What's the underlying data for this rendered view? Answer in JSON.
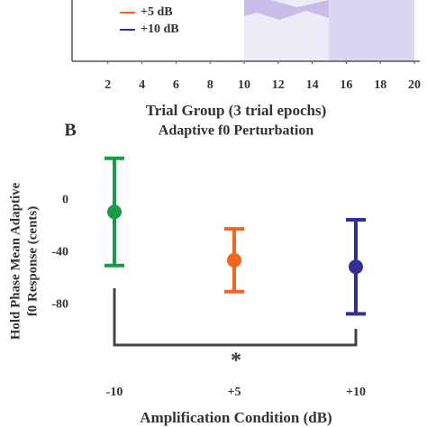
{
  "chart_data": [
    {
      "type": "line",
      "xlabel": "Trial Group (3 trial epochs)",
      "xlim": [
        0,
        20.3
      ],
      "xticks": [
        2,
        4,
        6,
        8,
        10,
        12,
        14,
        16,
        18,
        20
      ],
      "shaded_spans": [
        {
          "range": [
            10,
            15
          ],
          "color": "#ecebf7"
        },
        {
          "range": [
            15,
            20
          ],
          "color": "#d9d6f0"
        }
      ],
      "legend": [
        {
          "name": "+5 dB",
          "color": "#f26522"
        },
        {
          "name": "+10 dB",
          "color": "#2e3192"
        }
      ]
    },
    {
      "type": "errorbar",
      "panel_label": "B",
      "title": "Adaptive f0 Perturbation",
      "ylabel": [
        "Hold Phase Mean Adaptive",
        "f0 Response (cents)"
      ],
      "xlabel": "Amplification Condition (dB)",
      "categories": [
        "-10",
        "+5",
        "+10"
      ],
      "values": [
        -9,
        -46,
        -51
      ],
      "errors": [
        41,
        24,
        36
      ],
      "colors": [
        "#1a9a48",
        "#f26522",
        "#2e3192"
      ],
      "ylim": [
        -95,
        36
      ],
      "yticks": [
        0,
        -40,
        -80
      ],
      "annotation": "*"
    }
  ]
}
